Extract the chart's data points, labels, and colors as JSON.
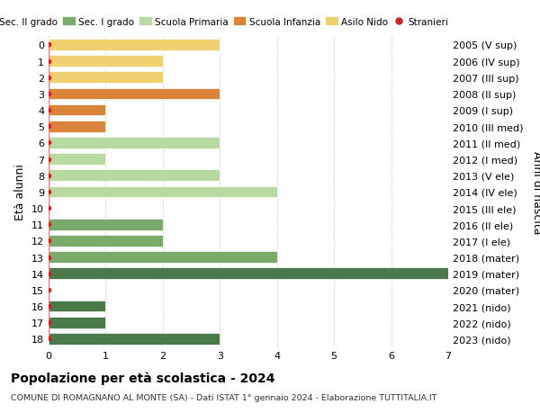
{
  "ages": [
    18,
    17,
    16,
    15,
    14,
    13,
    12,
    11,
    10,
    9,
    8,
    7,
    6,
    5,
    4,
    3,
    2,
    1,
    0
  ],
  "anni_nascita": [
    "2005 (V sup)",
    "2006 (IV sup)",
    "2007 (III sup)",
    "2008 (II sup)",
    "2009 (I sup)",
    "2010 (III med)",
    "2011 (II med)",
    "2012 (I med)",
    "2013 (V ele)",
    "2014 (IV ele)",
    "2015 (III ele)",
    "2016 (II ele)",
    "2017 (I ele)",
    "2018 (mater)",
    "2019 (mater)",
    "2020 (mater)",
    "2021 (nido)",
    "2022 (nido)",
    "2023 (nido)"
  ],
  "bar_values": [
    3,
    1,
    1,
    0,
    7,
    4,
    2,
    2,
    0,
    4,
    3,
    1,
    3,
    1,
    1,
    3,
    2,
    2,
    3
  ],
  "bar_colors": [
    "#4a7a4a",
    "#4a7a4a",
    "#4a7a4a",
    "#4a7a4a",
    "#4a7a4a",
    "#7aaa6a",
    "#7aaa6a",
    "#7aaa6a",
    "#b8d9a0",
    "#b8d9a0",
    "#b8d9a0",
    "#b8d9a0",
    "#b8d9a0",
    "#d9843a",
    "#d9843a",
    "#d9843a",
    "#f0d070",
    "#f0d070",
    "#f0d070"
  ],
  "stranieri_color": "#cc2222",
  "stranieri_line_color": "#e08080",
  "legend_labels": [
    "Sec. II grado",
    "Sec. I grado",
    "Scuola Primaria",
    "Scuola Infanzia",
    "Asilo Nido",
    "Stranieri"
  ],
  "legend_colors": [
    "#4a7a4a",
    "#7aaa6a",
    "#b8d9a0",
    "#d9843a",
    "#f0d070",
    "#cc2222"
  ],
  "title": "Popolazione per età scolastica - 2024",
  "subtitle": "COMUNE DI ROMAGNANO AL MONTE (SA) - Dati ISTAT 1° gennaio 2024 - Elaborazione TUTTITALIA.IT",
  "ylabel_left": "Età alunni",
  "ylabel_right": "Anni di nascita",
  "xlim": [
    0,
    7
  ],
  "background_color": "#ffffff",
  "grid_color": "#cccccc"
}
